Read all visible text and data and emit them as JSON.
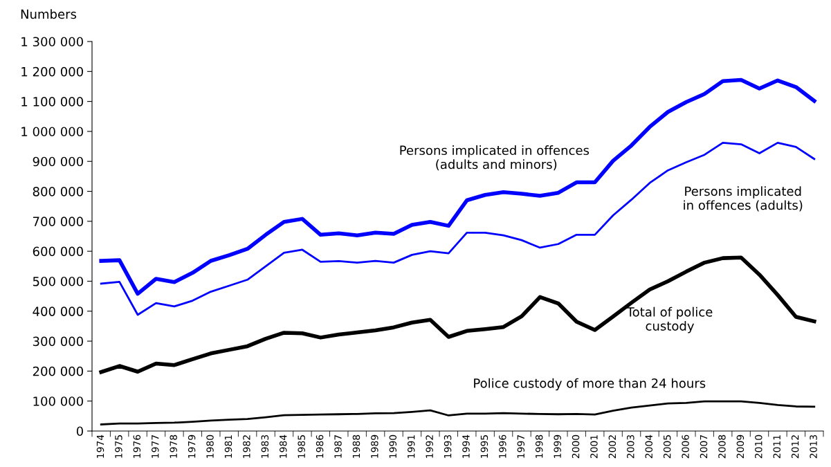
{
  "chart_data": {
    "type": "line",
    "ylabel": "Numbers",
    "categories": [
      "1974",
      "1975",
      "1976",
      "1977",
      "1978",
      "1979",
      "1980",
      "1981",
      "1982",
      "1983",
      "1984",
      "1985",
      "1986",
      "1987",
      "1988",
      "1989",
      "1990",
      "1991",
      "1992",
      "1993",
      "1994",
      "1995",
      "1996",
      "1997",
      "1998",
      "1999",
      "2000",
      "2001",
      "2002",
      "2003",
      "2004",
      "2005",
      "2006",
      "2007",
      "2008",
      "2009",
      "2010",
      "2011",
      "2012",
      "2013"
    ],
    "series": [
      {
        "name": "Persons implicated in offences\n (adults and minors)",
        "color": "#0000ff",
        "values": [
          568000,
          570000,
          458000,
          508000,
          497000,
          528000,
          568000,
          587000,
          608000,
          655000,
          698000,
          708000,
          655000,
          660000,
          653000,
          662000,
          658000,
          688000,
          698000,
          685000,
          770000,
          788000,
          797000,
          792000,
          785000,
          795000,
          830000,
          830000,
          902000,
          953000,
          1015000,
          1065000,
          1098000,
          1125000,
          1168000,
          1172000,
          1143000,
          1170000,
          1148000,
          1102000
        ]
      },
      {
        "name": "Persons implicated\nin offences (adults)",
        "color": "#0000ff",
        "values": [
          492000,
          498000,
          388000,
          427000,
          416000,
          435000,
          465000,
          485000,
          505000,
          550000,
          595000,
          605000,
          565000,
          567000,
          562000,
          568000,
          562000,
          588000,
          600000,
          593000,
          662000,
          662000,
          653000,
          637000,
          612000,
          624000,
          655000,
          655000,
          720000,
          772000,
          828000,
          870000,
          897000,
          922000,
          962000,
          957000,
          927000,
          962000,
          948000,
          908000
        ]
      },
      {
        "name": "Total of police\ncustody",
        "color": "#000000",
        "values": [
          197000,
          217000,
          198000,
          225000,
          220000,
          240000,
          259000,
          271000,
          283000,
          308000,
          328000,
          326000,
          312000,
          322000,
          329000,
          336000,
          346000,
          362000,
          371000,
          314000,
          334000,
          340000,
          347000,
          383000,
          447000,
          426000,
          365000,
          337000,
          382000,
          428000,
          472000,
          500000,
          532000,
          562000,
          577000,
          579000,
          522000,
          454000,
          381000,
          366000
        ]
      },
      {
        "name": "Police custody of more than 24 hours",
        "color": "#000000",
        "values": [
          22000,
          25000,
          25000,
          27000,
          28000,
          31000,
          35000,
          38000,
          40000,
          46000,
          53000,
          54000,
          55000,
          56000,
          57000,
          59000,
          60000,
          64000,
          69000,
          52000,
          58000,
          58000,
          60000,
          58000,
          57000,
          56000,
          57000,
          55000,
          68000,
          78000,
          85000,
          92000,
          94000,
          99000,
          99000,
          99000,
          94000,
          87000,
          82000,
          81000
        ]
      }
    ],
    "ylim": [
      0,
      1300000
    ],
    "yticks": [
      0,
      {
        "value": 100000,
        "label": "100 000"
      },
      {
        "value": 200000,
        "label": "200 000"
      },
      {
        "value": 300000,
        "label": "300 000"
      },
      {
        "value": 400000,
        "label": "400 000"
      },
      {
        "value": 500000,
        "label": "500 000"
      },
      {
        "value": 600000,
        "label": "600 000"
      },
      {
        "value": 700000,
        "label": "700 000"
      },
      {
        "value": 800000,
        "label": "800 000"
      },
      {
        "value": 900000,
        "label": "900 000"
      },
      {
        "value": 1000000,
        "label": "1 000 000"
      },
      {
        "value": 1100000,
        "label": "1 100 000"
      },
      {
        "value": 1200000,
        "label": "1 200 000"
      },
      {
        "value": 1300000,
        "label": "1 300 000"
      }
    ],
    "grid": false,
    "legend": false,
    "marker": "none",
    "line_style": "solid"
  }
}
